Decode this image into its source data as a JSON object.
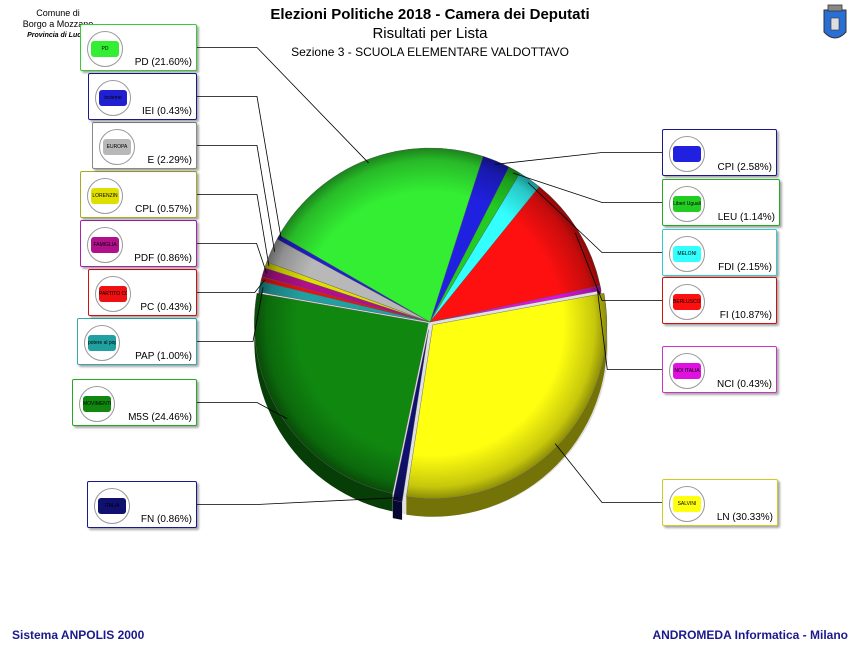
{
  "header": {
    "comune_line1": "Comune di",
    "comune_line2": "Borgo a Mozzano",
    "provincia": "Provincia di Lucca"
  },
  "chart_data": {
    "type": "pie",
    "title": "Elezioni Politiche 2018 - Camera dei Deputati",
    "subtitle": "Risultati per Lista",
    "section": "Sezione 3 - SCUOLA ELEMENTARE VALDOTTAVO",
    "slices": [
      {
        "code": "CPI",
        "label": "CPI (2.58%)",
        "value": 2.58,
        "color": "#2020e0",
        "border": "#1a1a8c"
      },
      {
        "code": "LEU",
        "label": "LEU (1.14%)",
        "value": 1.14,
        "color": "#22cc22",
        "border": "#22aa22"
      },
      {
        "code": "FDI",
        "label": "FDI (2.15%)",
        "value": 2.15,
        "color": "#33ffff",
        "border": "#33cccc"
      },
      {
        "code": "FI",
        "label": "FI (10.87%)",
        "value": 10.87,
        "color": "#ff1010",
        "border": "#cc1111"
      },
      {
        "code": "NCI",
        "label": "NCI (0.43%)",
        "value": 0.43,
        "color": "#e010e0",
        "border": "#cc33cc"
      },
      {
        "code": "LN",
        "label": "LN (30.33%)",
        "value": 30.33,
        "color": "#ffff10",
        "border": "#cccc22"
      },
      {
        "code": "FN",
        "label": "FN (0.86%)",
        "value": 0.86,
        "color": "#101070",
        "border": "#1a1a8c"
      },
      {
        "code": "M5S",
        "label": "M5S (24.46%)",
        "value": 24.46,
        "color": "#108810",
        "border": "#22aa22"
      },
      {
        "code": "PAP",
        "label": "PAP (1.00%)",
        "value": 1.0,
        "color": "#20a0a0",
        "border": "#33aaaa"
      },
      {
        "code": "PC",
        "label": "PC (0.43%)",
        "value": 0.43,
        "color": "#ee1111",
        "border": "#cc1111"
      },
      {
        "code": "PDF",
        "label": "PDF (0.86%)",
        "value": 0.86,
        "color": "#b0108a",
        "border": "#aa22aa"
      },
      {
        "code": "CPL",
        "label": "CPL (0.57%)",
        "value": 0.57,
        "color": "#e0e000",
        "border": "#aaaa22"
      },
      {
        "code": "E",
        "label": "E (2.29%)",
        "value": 2.29,
        "color": "#b8b8b8",
        "border": "#888888"
      },
      {
        "code": "IEI",
        "label": "IEI (0.43%)",
        "value": 0.43,
        "color": "#2020d0",
        "border": "#1a1a8c"
      },
      {
        "code": "PD",
        "label": "PD (21.60%)",
        "value": 21.6,
        "color": "#33ee33",
        "border": "#33cc33"
      }
    ]
  },
  "logos": {
    "PD": "PD",
    "IEI": "insieme",
    "E": "EUROPA",
    "CPL": "LORENZIN",
    "PDF": "FAMIGLIA",
    "PC": "PARTITO COMUNISTA",
    "PAP": "potere al popolo",
    "M5S": "MOVIMENTO",
    "FN": "ITALIA",
    "CPI": "",
    "LEU": "Liberi Uguali",
    "FDI": "MELONI",
    "FI": "BERLUSCONI",
    "NCI": "NOI ITALIA",
    "LN": "SALVINI"
  },
  "footer": {
    "left": "Sistema ANPOLIS 2000",
    "right": "ANDROMEDA Informatica - Milano"
  }
}
